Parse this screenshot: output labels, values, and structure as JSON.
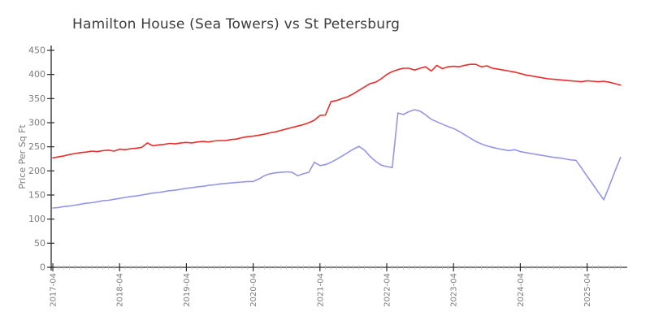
{
  "chart_data": {
    "type": "line",
    "title": "Hamilton House (Sea Towers) vs St Petersburg",
    "xlabel": "",
    "ylabel": "Price Per Sq Ft",
    "ylim": [
      0,
      450
    ],
    "grid": false,
    "legend": "none",
    "y_ticks": [
      0,
      50,
      100,
      150,
      200,
      250,
      300,
      350,
      400,
      450
    ],
    "x_major_ticks": [
      "2017-04",
      "2018-04",
      "2019-04",
      "2020-04",
      "2021-04",
      "2022-04",
      "2023-04",
      "2024-04",
      "2025-04"
    ],
    "x": [
      "2017-04",
      "2017-05",
      "2017-06",
      "2017-07",
      "2017-08",
      "2017-09",
      "2017-10",
      "2017-11",
      "2017-12",
      "2018-01",
      "2018-02",
      "2018-03",
      "2018-04",
      "2018-05",
      "2018-06",
      "2018-07",
      "2018-08",
      "2018-09",
      "2018-10",
      "2018-11",
      "2018-12",
      "2019-01",
      "2019-02",
      "2019-03",
      "2019-04",
      "2019-05",
      "2019-06",
      "2019-07",
      "2019-08",
      "2019-09",
      "2019-10",
      "2019-11",
      "2019-12",
      "2020-01",
      "2020-02",
      "2020-03",
      "2020-04",
      "2020-05",
      "2020-06",
      "2020-07",
      "2020-08",
      "2020-09",
      "2020-10",
      "2020-11",
      "2020-12",
      "2021-01",
      "2021-02",
      "2021-03",
      "2021-04",
      "2021-05",
      "2021-06",
      "2021-07",
      "2021-08",
      "2021-09",
      "2021-10",
      "2021-11",
      "2021-12",
      "2022-01",
      "2022-02",
      "2022-03",
      "2022-04",
      "2022-05",
      "2022-06",
      "2022-07",
      "2022-08",
      "2022-09",
      "2022-10",
      "2022-11",
      "2022-12",
      "2023-01",
      "2023-02",
      "2023-03",
      "2023-04",
      "2023-05",
      "2023-06",
      "2023-07",
      "2023-08",
      "2023-09",
      "2023-10",
      "2023-11",
      "2023-12",
      "2024-01",
      "2024-02",
      "2024-03",
      "2024-04",
      "2024-05",
      "2024-06",
      "2024-07",
      "2024-08",
      "2024-09",
      "2024-10",
      "2024-11",
      "2024-12",
      "2025-01",
      "2025-02",
      "2025-03",
      "2025-04",
      "2025-05",
      "2025-06",
      "2025-07",
      "2025-08",
      "2025-09",
      "2025-10"
    ],
    "series": [
      {
        "name": "red-line",
        "color": "#ed2b2b",
        "values": [
          227,
          229,
          231,
          234,
          236,
          238,
          239,
          241,
          240,
          242,
          243,
          241,
          245,
          244,
          246,
          247,
          249,
          258,
          252,
          254,
          255,
          257,
          256,
          258,
          259,
          258,
          260,
          261,
          260,
          262,
          263,
          263,
          265,
          266,
          269,
          271,
          272,
          274,
          276,
          279,
          281,
          284,
          287,
          290,
          293,
          296,
          300,
          305,
          315,
          316,
          344,
          346,
          350,
          354,
          360,
          367,
          374,
          381,
          384,
          391,
          400,
          406,
          410,
          413,
          413,
          409,
          413,
          416,
          407,
          419,
          412,
          416,
          417,
          416,
          419,
          421,
          421,
          416,
          418,
          413,
          411,
          409,
          407,
          405,
          402,
          399,
          397,
          395,
          393,
          391,
          390,
          389,
          388,
          387,
          386,
          385,
          387,
          386,
          385,
          386,
          384,
          381,
          378
        ]
      },
      {
        "name": "blue-line",
        "color": "#9595e8",
        "values": [
          123,
          124,
          126,
          127,
          129,
          131,
          133,
          134,
          136,
          138,
          139,
          141,
          143,
          145,
          147,
          148,
          150,
          152,
          154,
          155,
          157,
          159,
          160,
          162,
          164,
          165,
          167,
          168,
          170,
          171,
          173,
          174,
          175,
          176,
          177,
          178,
          178,
          183,
          190,
          194,
          196,
          197,
          198,
          197,
          190,
          194,
          197,
          218,
          211,
          213,
          218,
          224,
          231,
          238,
          245,
          251,
          243,
          230,
          220,
          212,
          209,
          207,
          320,
          317,
          323,
          327,
          324,
          316,
          307,
          302,
          297,
          292,
          288,
          282,
          275,
          268,
          261,
          256,
          252,
          249,
          246,
          244,
          242,
          244,
          240,
          238,
          236,
          234,
          232,
          230,
          228,
          227,
          225,
          223,
          222,
          206,
          189,
          173,
          156,
          140,
          169,
          199,
          228
        ]
      }
    ],
    "style": {
      "background": "#ffffff",
      "axis_color": "#2a2a2a",
      "tick_label_color": "#7c7c7c",
      "title_color": "#3c3c3c",
      "minor_tick_color": "#bdbdbd"
    }
  }
}
